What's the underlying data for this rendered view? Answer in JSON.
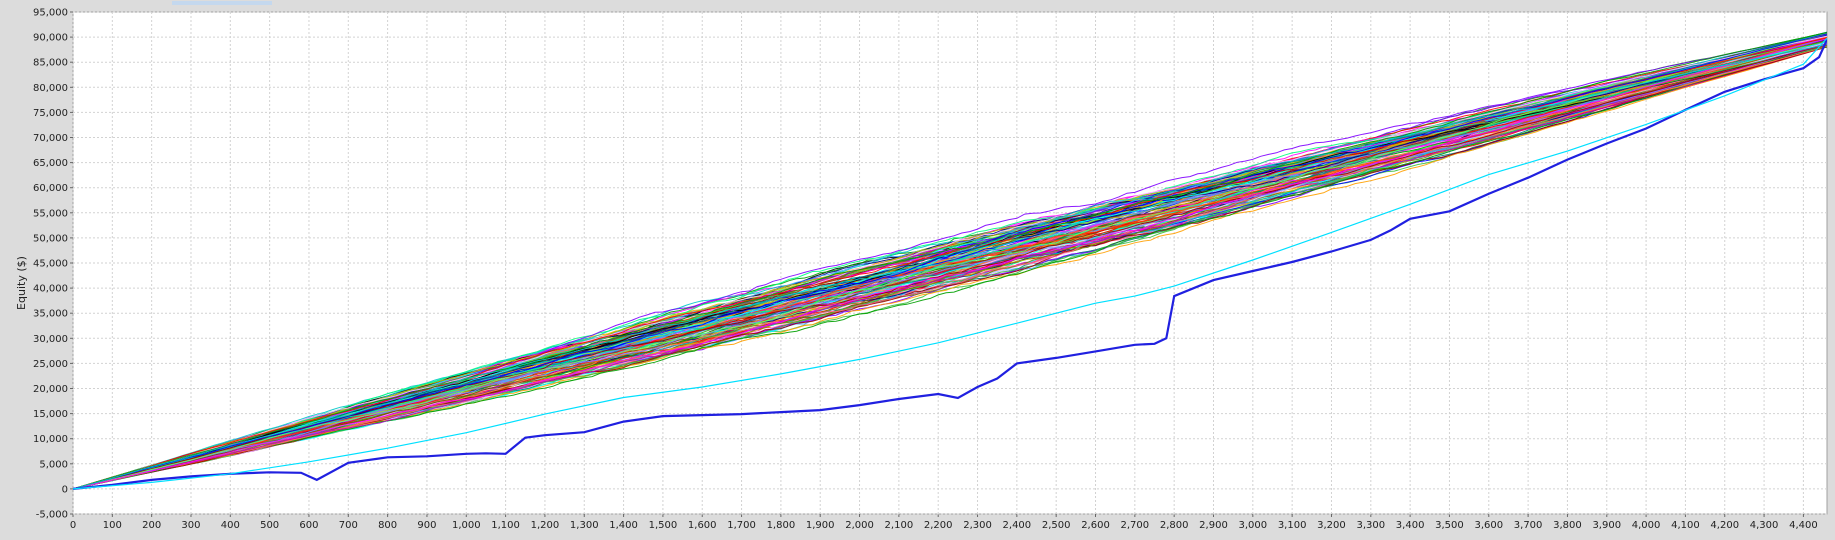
{
  "chart_data": {
    "type": "line",
    "title": "",
    "xlabel": "",
    "ylabel": "Equity ($)",
    "xlim": [
      0,
      4460
    ],
    "ylim": [
      -5000,
      95000
    ],
    "x_ticks": [
      0,
      100,
      200,
      300,
      400,
      500,
      600,
      700,
      800,
      900,
      1000,
      1100,
      1200,
      1300,
      1400,
      1500,
      1600,
      1700,
      1800,
      1900,
      2000,
      2100,
      2200,
      2300,
      2400,
      2500,
      2600,
      2700,
      2800,
      2900,
      3000,
      3100,
      3200,
      3300,
      3400,
      3500,
      3600,
      3700,
      3800,
      3900,
      4000,
      4100,
      4200,
      4300,
      4400
    ],
    "x_tick_labels": [
      "0",
      "100",
      "200",
      "300",
      "400",
      "500",
      "600",
      "700",
      "800",
      "900",
      "1,000",
      "1,100",
      "1,200",
      "1,300",
      "1,400",
      "1,500",
      "1,600",
      "1,700",
      "1,800",
      "1,900",
      "2,000",
      "2,100",
      "2,200",
      "2,300",
      "2,400",
      "2,500",
      "2,600",
      "2,700",
      "2,800",
      "2,900",
      "3,000",
      "3,100",
      "3,200",
      "3,300",
      "3,400",
      "3,500",
      "3,600",
      "3,700",
      "3,800",
      "3,900",
      "4,000",
      "4,100",
      "4,200",
      "4,300",
      "4,400"
    ],
    "y_ticks": [
      -5000,
      0,
      5000,
      10000,
      15000,
      20000,
      25000,
      30000,
      35000,
      40000,
      45000,
      50000,
      55000,
      60000,
      65000,
      70000,
      75000,
      80000,
      85000,
      90000,
      95000
    ],
    "y_tick_labels": [
      "-5,000",
      "0",
      "5,000",
      "10,000",
      "15,000",
      "20,000",
      "25,000",
      "30,000",
      "35,000",
      "40,000",
      "45,000",
      "50,000",
      "55,000",
      "60,000",
      "65,000",
      "70,000",
      "75,000",
      "80,000",
      "85,000",
      "90,000",
      "95,000"
    ],
    "grid": true,
    "legend": "none",
    "colors": {
      "plot_background": "#ffffff",
      "frame_background": "#dcdcdc",
      "gridline": "#d2d2d2",
      "highlight_series": "#2020e0",
      "series_palette": [
        "#ff0000",
        "#0000ff",
        "#00a000",
        "#ff00ff",
        "#00c8c8",
        "#ffa000",
        "#8000ff",
        "#808000",
        "#000080",
        "#ff6080",
        "#00ff80",
        "#804000",
        "#000000",
        "#ff8040",
        "#40a0ff",
        "#c000c0",
        "#40c040",
        "#c0c000",
        "#00ffff",
        "#ff4000",
        "#8080ff",
        "#008080",
        "#a00000",
        "#ffc0ff",
        "#60ff60"
      ]
    },
    "series": [
      {
        "x": [
          0,
          100,
          200,
          300,
          400,
          500,
          580,
          620,
          700,
          800,
          900,
          1000,
          1050,
          1100,
          1150,
          1200,
          1300,
          1400,
          1500,
          1600,
          1700,
          1800,
          1900,
          2000,
          2100,
          2200,
          2250,
          2300,
          2350,
          2400,
          2500,
          2600,
          2700,
          2750,
          2780,
          2800,
          2900,
          3000,
          3100,
          3200,
          3300,
          3350,
          3400,
          3500,
          3600,
          3700,
          3800,
          3900,
          4000,
          4100,
          4200,
          4300,
          4400,
          4440,
          4460
        ],
        "y": [
          0,
          800,
          1800,
          2500,
          3000,
          3300,
          3200,
          1800,
          5200,
          6300,
          6500,
          7000,
          7100,
          7000,
          10200,
          10700,
          11300,
          13400,
          14500,
          14700,
          14900,
          15300,
          15700,
          16700,
          17900,
          18900,
          18100,
          20300,
          22000,
          25000,
          26100,
          27400,
          28700,
          28900,
          30000,
          38400,
          41600,
          43400,
          45200,
          47300,
          49600,
          51500,
          53800,
          55300,
          58800,
          62000,
          65600,
          68800,
          71800,
          75500,
          79100,
          81600,
          83800,
          86000,
          89500
        ]
      },
      {
        "x": [
          0,
          200,
          400,
          600,
          800,
          1000,
          1200,
          1400,
          1600,
          1800,
          2000,
          2200,
          2400,
          2600,
          2700,
          2800,
          3000,
          3200,
          3400,
          3600,
          3800,
          4000,
          4200,
          4400,
          4460
        ],
        "y": [
          0,
          1300,
          3000,
          5400,
          8100,
          11200,
          14900,
          18200,
          20300,
          22900,
          25800,
          29100,
          33000,
          37000,
          38400,
          40400,
          45600,
          51100,
          56700,
          62600,
          67300,
          72600,
          78300,
          84600,
          89800
        ]
      }
    ]
  }
}
